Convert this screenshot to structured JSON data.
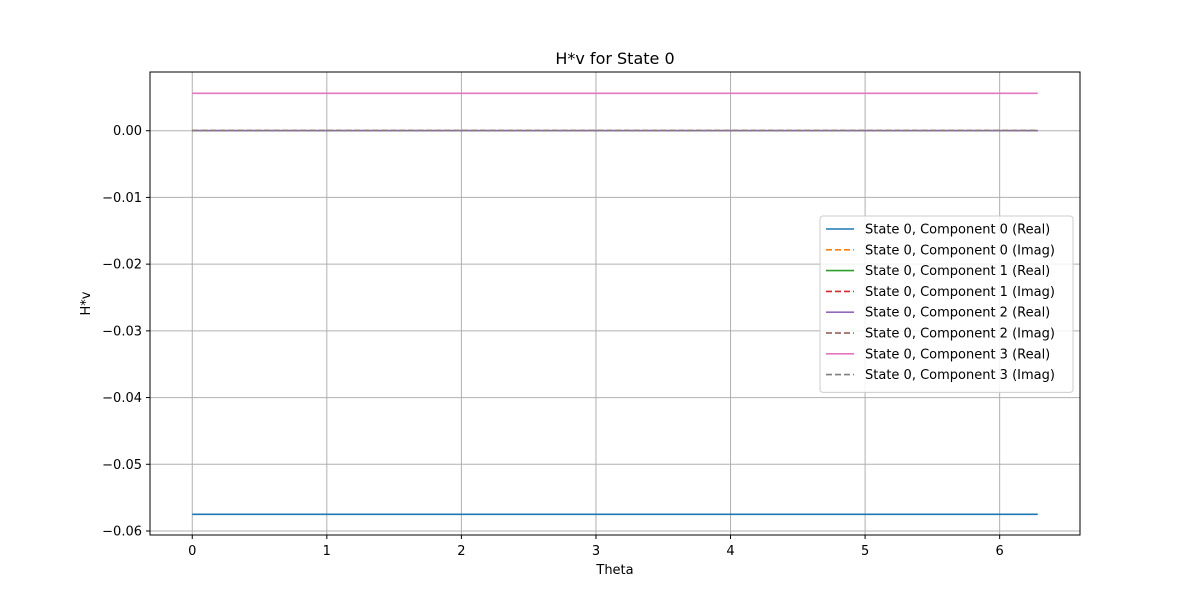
{
  "chart_data": {
    "type": "line",
    "title": "H*v for State 0",
    "xlabel": "Theta",
    "ylabel": "H*v",
    "xlim": [
      -0.314,
      6.597
    ],
    "ylim": [
      -0.0606,
      0.0088
    ],
    "x": [
      0,
      6.283
    ],
    "xticks": [
      0,
      1,
      2,
      3,
      4,
      5,
      6
    ],
    "xtick_labels": [
      "0",
      "1",
      "2",
      "3",
      "4",
      "5",
      "6"
    ],
    "yticks": [
      0.0,
      -0.01,
      -0.02,
      -0.03,
      -0.04,
      -0.05,
      -0.06
    ],
    "ytick_labels": [
      "0.00",
      "−0.01",
      "−0.02",
      "−0.03",
      "−0.04",
      "−0.05",
      "−0.06"
    ],
    "grid": true,
    "legend_position": "center-right",
    "series": [
      {
        "name": "State 0, Component 0 (Real)",
        "values": [
          -0.0575,
          -0.0575
        ],
        "color": "#1f77b4",
        "dashed": false
      },
      {
        "name": "State 0, Component 0 (Imag)",
        "values": [
          0.0,
          0.0
        ],
        "color": "#ff7f0e",
        "dashed": true
      },
      {
        "name": "State 0, Component 1 (Real)",
        "values": [
          0.0,
          0.0
        ],
        "color": "#2ca02c",
        "dashed": false
      },
      {
        "name": "State 0, Component 1 (Imag)",
        "values": [
          0.0,
          0.0
        ],
        "color": "#d62728",
        "dashed": true
      },
      {
        "name": "State 0, Component 2 (Real)",
        "values": [
          0.0,
          0.0
        ],
        "color": "#9467bd",
        "dashed": false
      },
      {
        "name": "State 0, Component 2 (Imag)",
        "values": [
          0.0,
          0.0
        ],
        "color": "#8c564b",
        "dashed": true
      },
      {
        "name": "State 0, Component 3 (Real)",
        "values": [
          0.0056,
          0.0056
        ],
        "color": "#e377c2",
        "dashed": false
      },
      {
        "name": "State 0, Component 3 (Imag)",
        "values": [
          0.0,
          0.0
        ],
        "color": "#7f7f7f",
        "dashed": true
      }
    ]
  }
}
